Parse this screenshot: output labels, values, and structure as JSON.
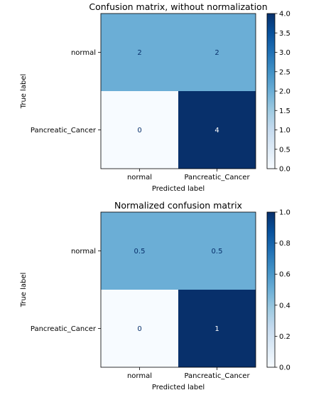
{
  "chart_data": [
    {
      "type": "heatmap",
      "title": "Confusion matrix, without normalization",
      "xlabel": "Predicted label",
      "ylabel": "True label",
      "x_categories": [
        "normal",
        "Pancreatic_Cancer"
      ],
      "y_categories": [
        "normal",
        "Pancreatic_Cancer"
      ],
      "values": [
        [
          2,
          2
        ],
        [
          0,
          4
        ]
      ],
      "cell_labels": [
        [
          "2",
          "2"
        ],
        [
          "0",
          "4"
        ]
      ],
      "colorbar": {
        "min": 0.0,
        "max": 4.0,
        "ticks": [
          "0.0",
          "0.5",
          "1.0",
          "1.5",
          "2.0",
          "2.5",
          "3.0",
          "3.5",
          "4.0"
        ]
      },
      "colormap": "Blues",
      "grid": false
    },
    {
      "type": "heatmap",
      "title": "Normalized confusion matrix",
      "xlabel": "Predicted label",
      "ylabel": "True label",
      "x_categories": [
        "normal",
        "Pancreatic_Cancer"
      ],
      "y_categories": [
        "normal",
        "Pancreatic_Cancer"
      ],
      "values": [
        [
          0.5,
          0.5
        ],
        [
          0,
          1
        ]
      ],
      "cell_labels": [
        [
          "0.5",
          "0.5"
        ],
        [
          "0",
          "1"
        ]
      ],
      "colorbar": {
        "min": 0.0,
        "max": 1.0,
        "ticks": [
          "0.0",
          "0.2",
          "0.4",
          "0.6",
          "0.8",
          "1.0"
        ]
      },
      "colormap": "Blues",
      "grid": false
    }
  ],
  "colors": {
    "low": "#f7fbff",
    "mid": "#6baed6",
    "high": "#08306b",
    "text_dark": "#08306b",
    "text_light": "#ffffff"
  }
}
